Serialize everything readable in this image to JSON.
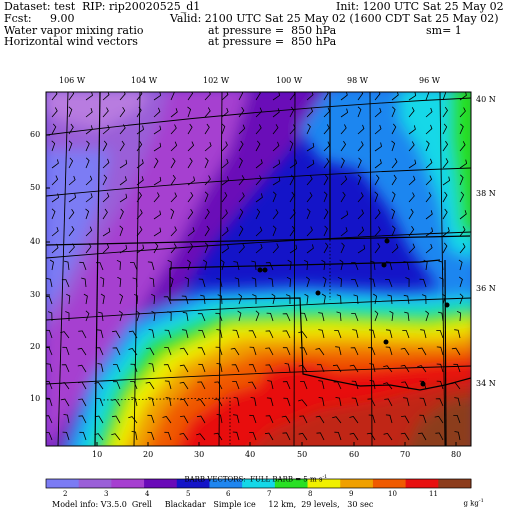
{
  "header": {
    "dataset": "Dataset: test  RIP: rip20020525_d1",
    "init": "Init: 1200 UTC Sat 25 May 02",
    "fcst_label": "Fcst:",
    "fcst_value": "9.00",
    "valid": "Valid: 2100 UTC Sat 25 May 02 (1600 CDT Sat 25 May 02)",
    "field1": "Water vapor mixing ratio",
    "field1_level": "at pressure =  850 hPa",
    "field1_sm": "sm= 1",
    "field2": "Horizontal wind vectors",
    "field2_level": "at pressure =  850 hPa"
  },
  "map": {
    "lon_labels": [
      "106 W",
      "104 W",
      "102 W",
      "100 W",
      "98 W",
      "96 W"
    ],
    "lat_labels": [
      "40 N",
      "38 N",
      "36 N",
      "34 N"
    ],
    "y_ticks": [
      "60",
      "50",
      "40",
      "30",
      "20",
      "10"
    ],
    "x_ticks": [
      "10",
      "20",
      "30",
      "40",
      "50",
      "60",
      "70",
      "80"
    ]
  },
  "colorbar": {
    "caption": "BARB VECTORS:  FULL BARB = 5 m s",
    "caption_exp": "-1",
    "levels": [
      "2",
      "3",
      "4",
      "5",
      "6",
      "7",
      "8",
      "9",
      "10",
      "11"
    ],
    "units": "g kg",
    "units_exp": "-1",
    "colors": [
      "#7b7bf4",
      "#9a5fd8",
      "#a63fd0",
      "#6a0ab8",
      "#1414c8",
      "#1f86f0",
      "#14d8e8",
      "#28e024",
      "#f0f000",
      "#f0a000",
      "#f05a00",
      "#e81010",
      "#8c3c1c"
    ]
  },
  "footer": {
    "model_info": "Model info: V3.5.0  Grell     Blackadar   Simple ice     12 km,  29 levels,   30 sec"
  }
}
